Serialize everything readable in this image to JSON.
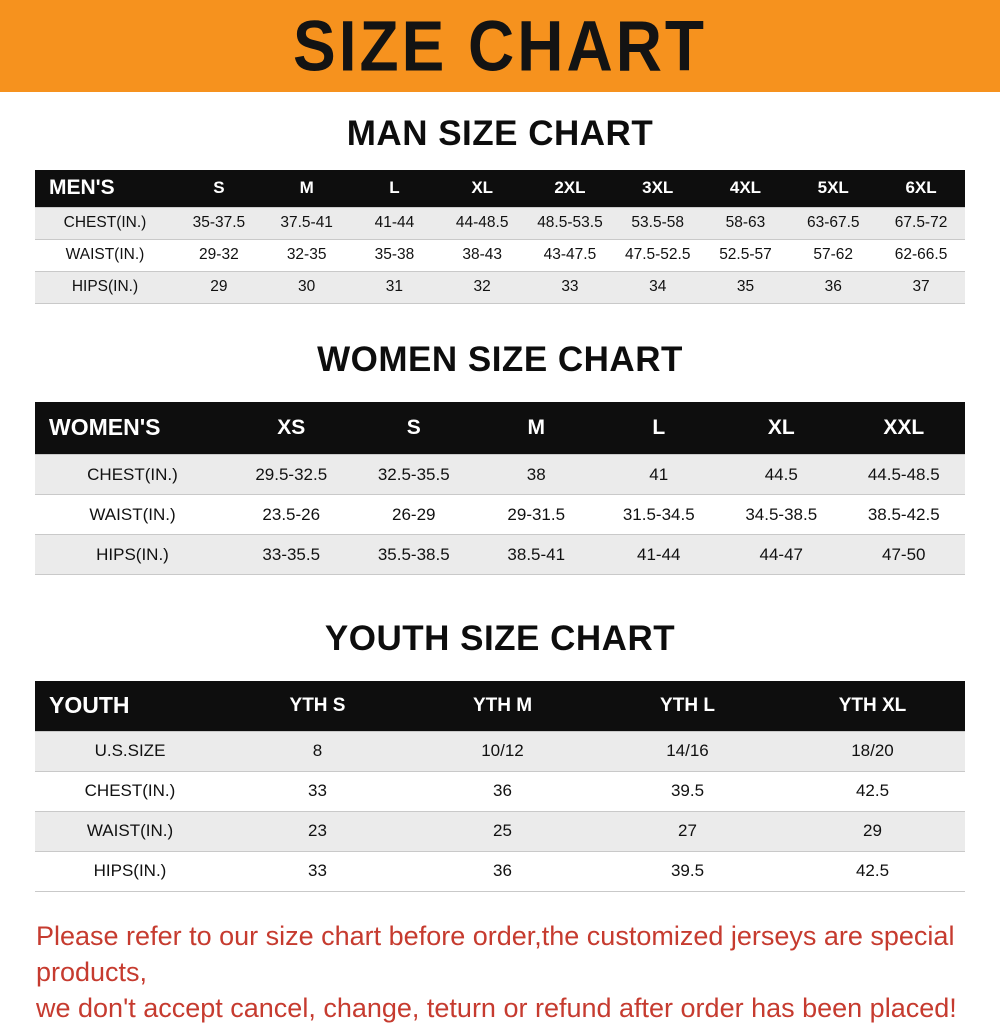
{
  "banner": {
    "title": "SIZE CHART",
    "bg_color": "#f6921e",
    "text_color": "#131313"
  },
  "colors": {
    "table_header_bg": "#0e0e0e",
    "table_header_text": "#ffffff",
    "row_alt_bg": "#ebebeb",
    "footer_text": "#c63b2f"
  },
  "sections": [
    {
      "heading": "MAN SIZE CHART",
      "table": {
        "header_label": "MEN'S",
        "columns": [
          "S",
          "M",
          "L",
          "XL",
          "2XL",
          "3XL",
          "4XL",
          "5XL",
          "6XL"
        ],
        "rows": [
          {
            "label": "CHEST(IN.)",
            "values": [
              "35-37.5",
              "37.5-41",
              "41-44",
              "44-48.5",
              "48.5-53.5",
              "53.5-58",
              "58-63",
              "63-67.5",
              "67.5-72"
            ]
          },
          {
            "label": "WAIST(IN.)",
            "values": [
              "29-32",
              "32-35",
              "35-38",
              "38-43",
              "43-47.5",
              "47.5-52.5",
              "52.5-57",
              "57-62",
              "62-66.5"
            ]
          },
          {
            "label": "HIPS(IN.)",
            "values": [
              "29",
              "30",
              "31",
              "32",
              "33",
              "34",
              "35",
              "36",
              "37"
            ]
          }
        ]
      }
    },
    {
      "heading": "WOMEN SIZE CHART",
      "table": {
        "header_label": "WOMEN'S",
        "columns": [
          "XS",
          "S",
          "M",
          "L",
          "XL",
          "XXL"
        ],
        "rows": [
          {
            "label": "CHEST(IN.)",
            "values": [
              "29.5-32.5",
              "32.5-35.5",
              "38",
              "41",
              "44.5",
              "44.5-48.5"
            ]
          },
          {
            "label": "WAIST(IN.)",
            "values": [
              "23.5-26",
              "26-29",
              "29-31.5",
              "31.5-34.5",
              "34.5-38.5",
              "38.5-42.5"
            ]
          },
          {
            "label": "HIPS(IN.)",
            "values": [
              "33-35.5",
              "35.5-38.5",
              "38.5-41",
              "41-44",
              "44-47",
              "47-50"
            ]
          }
        ]
      }
    },
    {
      "heading": "YOUTH SIZE CHART",
      "table": {
        "header_label": "YOUTH",
        "columns": [
          "YTH S",
          "YTH M",
          "YTH L",
          "YTH XL"
        ],
        "rows": [
          {
            "label": "U.S.SIZE",
            "values": [
              "8",
              "10/12",
              "14/16",
              "18/20"
            ]
          },
          {
            "label": "CHEST(IN.)",
            "values": [
              "33",
              "36",
              "39.5",
              "42.5"
            ]
          },
          {
            "label": "WAIST(IN.)",
            "values": [
              "23",
              "25",
              "27",
              "29"
            ]
          },
          {
            "label": "HIPS(IN.)",
            "values": [
              "33",
              "36",
              "39.5",
              "42.5"
            ]
          }
        ]
      }
    }
  ],
  "footer": {
    "line1": "Please refer to our size chart before order,the customized jerseys are special products,",
    "line2": "we don't accept cancel, change, teturn or refund after order has been placed!"
  }
}
